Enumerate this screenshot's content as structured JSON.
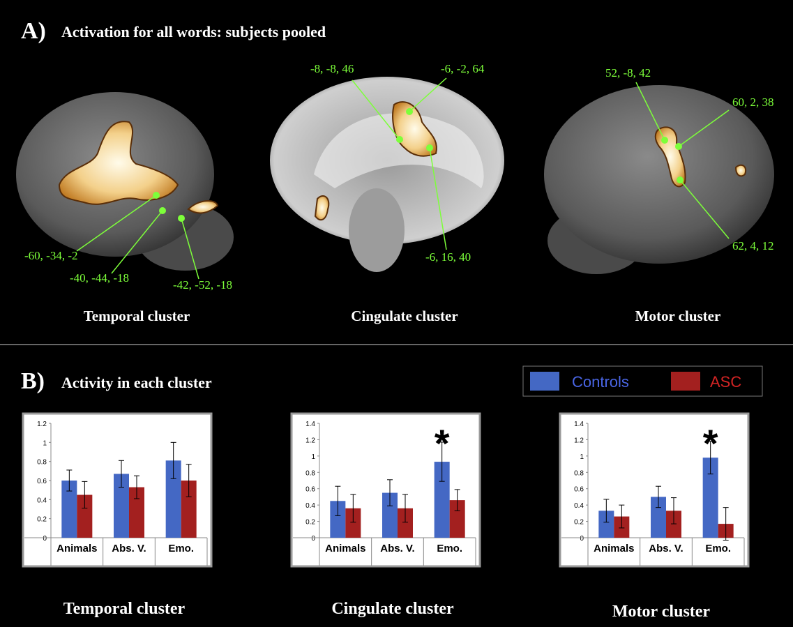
{
  "panel_a": {
    "label": "A)",
    "title": "Activation for all words: subjects pooled",
    "images": [
      {
        "caption": "Temporal cluster",
        "coords": [
          "-60, -34, -2",
          "-40, -44, -18",
          "-42, -52, -18"
        ]
      },
      {
        "caption": "Cingulate cluster",
        "coords": [
          "-8, -8, 46",
          "-6, -2, 64",
          "-6, 16, 40"
        ]
      },
      {
        "caption": "Motor cluster",
        "coords": [
          "52, -8, 42",
          "60, 2, 38",
          "62, 4, 12"
        ]
      }
    ]
  },
  "panel_b": {
    "label": "B)",
    "title": "Activity in each cluster"
  },
  "chart_data": [
    {
      "type": "bar",
      "title": "Temporal cluster",
      "categories": [
        "Animals",
        "Abs. V.",
        "Emo."
      ],
      "series": [
        {
          "name": "Controls",
          "color": "#4468c4",
          "values": [
            0.6,
            0.67,
            0.81
          ],
          "errors": [
            0.11,
            0.14,
            0.19
          ]
        },
        {
          "name": "ASC",
          "color": "#a3201f",
          "values": [
            0.45,
            0.53,
            0.6
          ],
          "errors": [
            0.14,
            0.12,
            0.17
          ]
        }
      ],
      "ylim": [
        0,
        1.2
      ],
      "yticks": [
        0,
        0.2,
        0.4,
        0.6,
        0.8,
        1,
        1.2
      ]
    },
    {
      "type": "bar",
      "title": "Cingulate cluster",
      "annotation": "*",
      "categories": [
        "Animals",
        "Abs. V.",
        "Emo."
      ],
      "series": [
        {
          "name": "Controls",
          "color": "#4468c4",
          "values": [
            0.45,
            0.55,
            0.93
          ],
          "errors": [
            0.18,
            0.16,
            0.24
          ]
        },
        {
          "name": "ASC",
          "color": "#a3201f",
          "values": [
            0.36,
            0.36,
            0.46
          ],
          "errors": [
            0.17,
            0.17,
            0.13
          ]
        }
      ],
      "ylim": [
        0,
        1.4
      ],
      "yticks": [
        0,
        0.2,
        0.4,
        0.6,
        0.8,
        1,
        1.2,
        1.4
      ]
    },
    {
      "type": "bar",
      "title": "Motor cluster",
      "annotation": "*",
      "categories": [
        "Animals",
        "Abs. V.",
        "Emo."
      ],
      "series": [
        {
          "name": "Controls",
          "color": "#4468c4",
          "values": [
            0.33,
            0.5,
            0.98
          ],
          "errors": [
            0.14,
            0.13,
            0.2
          ]
        },
        {
          "name": "ASC",
          "color": "#a3201f",
          "values": [
            0.26,
            0.33,
            0.17
          ],
          "errors": [
            0.14,
            0.16,
            0.2
          ]
        }
      ],
      "ylim": [
        0,
        1.4
      ],
      "yticks": [
        0,
        0.2,
        0.4,
        0.6,
        0.8,
        1,
        1.2,
        1.4
      ]
    }
  ]
}
